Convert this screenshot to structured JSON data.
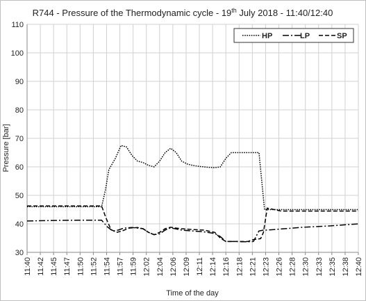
{
  "chart_data": {
    "type": "line",
    "title": "R744 - Pressure of the Thermodynamic cycle - 19",
    "title_sup": "th",
    "title_rest": " July 2018 - 11:40/12:40",
    "xlabel": "Time of the day",
    "ylabel": "Pressure [bar]",
    "ylim": [
      30,
      110
    ],
    "yticks": [
      30,
      40,
      50,
      60,
      70,
      80,
      90,
      100,
      110
    ],
    "xlim_minutes": [
      0,
      60
    ],
    "xtick_labels": [
      "11:40",
      "11:42",
      "11:45",
      "11:47",
      "11:50",
      "11:52",
      "11:54",
      "11:57",
      "11:59",
      "12:02",
      "12:04",
      "12:06",
      "12:09",
      "12:11",
      "12:14",
      "12:16",
      "12:18",
      "12:21",
      "12:23",
      "12:26",
      "12:28",
      "12:30",
      "12:33",
      "12:35",
      "12:38",
      "12:40"
    ],
    "grid": true,
    "legend_position": "top-right",
    "series": [
      {
        "name": "HP",
        "style": "dotted",
        "x": [
          0,
          5,
          10,
          13.5,
          14.2,
          14.8,
          16,
          17,
          18,
          19,
          20,
          21,
          22,
          23,
          24,
          25,
          26,
          27,
          28,
          29,
          30,
          31,
          32,
          33,
          34,
          35,
          36,
          37,
          38,
          39,
          40,
          41,
          42,
          43,
          44,
          44.6,
          45.2,
          46,
          50,
          55,
          60
        ],
        "values": [
          46,
          46,
          46,
          46,
          52,
          59,
          63,
          67.5,
          67,
          64,
          62,
          61.5,
          60.5,
          60,
          62,
          65,
          66.5,
          65,
          62,
          61,
          60.5,
          60.2,
          60,
          59.8,
          59.7,
          60,
          63,
          65,
          65,
          65,
          65,
          65,
          65,
          45,
          45,
          45,
          45,
          45,
          45,
          45,
          45
        ]
      },
      {
        "name": "LP",
        "style": "long-dash-dot",
        "x": [
          0,
          5,
          10,
          13.5,
          14.5,
          15.5,
          16.5,
          17.5,
          19,
          20,
          21,
          22,
          23,
          24,
          25,
          26,
          27,
          28,
          30,
          32,
          34,
          35,
          36,
          37,
          38,
          39,
          40,
          41,
          42,
          42.8,
          43.5,
          46,
          50,
          55,
          60
        ],
        "values": [
          41,
          41.2,
          41.3,
          41.3,
          39,
          37.5,
          37.8,
          38.5,
          38.7,
          38.5,
          38.3,
          37,
          36.2,
          36.5,
          37.8,
          38.6,
          38.2,
          37.8,
          37.5,
          37.2,
          36.6,
          35.5,
          33.8,
          33.8,
          33.8,
          33.7,
          33.7,
          33.8,
          37.5,
          37.8,
          37.8,
          38.2,
          38.8,
          39.3,
          40
        ]
      },
      {
        "name": "SP",
        "style": "dashed",
        "x": [
          0,
          5,
          10,
          13.5,
          14.3,
          15.2,
          16.2,
          17.2,
          18.5,
          20,
          21,
          22,
          23,
          24,
          25,
          26,
          27,
          28,
          30,
          32,
          34,
          35,
          36,
          37,
          38,
          39,
          40,
          41,
          42.3,
          42.8,
          43.5,
          46,
          50,
          55,
          60
        ],
        "values": [
          46.3,
          46.3,
          46.3,
          46.3,
          42,
          38,
          37,
          37.5,
          38.5,
          38.7,
          38.3,
          37,
          36.2,
          37,
          38.3,
          38.8,
          38.5,
          38.3,
          38,
          37.8,
          37,
          35,
          33.8,
          33.8,
          33.8,
          33.8,
          33.8,
          34.5,
          34.8,
          37,
          45.5,
          44.5,
          44.5,
          44.5,
          44.5
        ]
      }
    ]
  }
}
